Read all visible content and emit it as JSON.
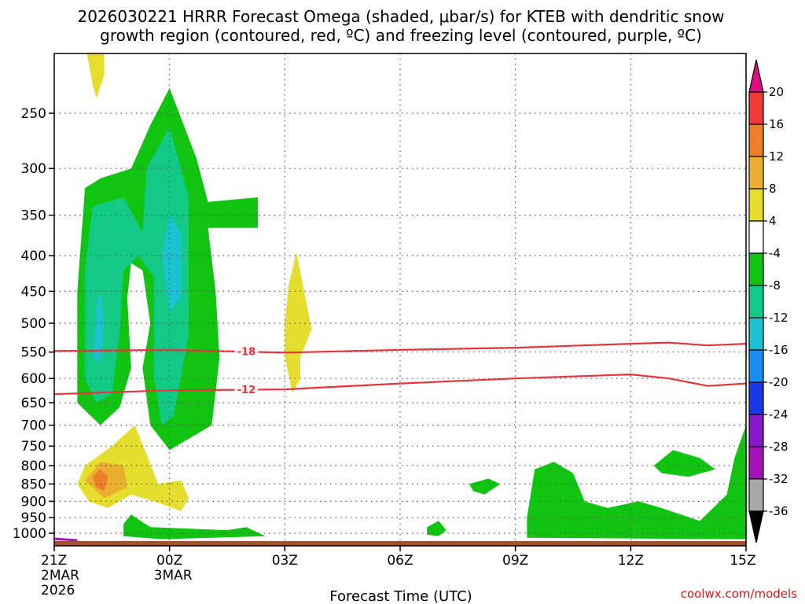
{
  "title_line1": "2026030221 HRRR Forecast Omega (shaded, μbar/s) for KTEB with dendritic snow",
  "title_line2": "growth region (contoured, red, ºC) and freezing level (contoured, purple, ºC)",
  "credit": "coolwx.com/models",
  "chart_data": {
    "type": "contour",
    "title": "2026030221 HRRR Forecast Omega (shaded, μbar/s) for KTEB with dendritic snow growth region (contoured, red, ºC) and freezing level (contoured, purple, ºC)",
    "xlabel": "Forecast Time (UTC)",
    "ylabel": "",
    "xlim": [
      0,
      18
    ],
    "ylim": [
      1050,
      200
    ],
    "y_scale": "log-pressure",
    "grid": true,
    "x_ticks": [
      {
        "hour": 0,
        "label": "21Z",
        "date": "2MAR",
        "year": "2026"
      },
      {
        "hour": 3,
        "label": "00Z",
        "date": "3MAR",
        "year": ""
      },
      {
        "hour": 6,
        "label": "03Z",
        "date": "",
        "year": ""
      },
      {
        "hour": 9,
        "label": "06Z",
        "date": "",
        "year": ""
      },
      {
        "hour": 12,
        "label": "09Z",
        "date": "",
        "year": ""
      },
      {
        "hour": 15,
        "label": "12Z",
        "date": "",
        "year": ""
      },
      {
        "hour": 18,
        "label": "15Z",
        "date": "",
        "year": ""
      }
    ],
    "y_ticks": [
      250,
      300,
      350,
      400,
      450,
      500,
      550,
      600,
      650,
      700,
      750,
      800,
      850,
      900,
      950,
      1000
    ],
    "colorbar": {
      "labels": [
        "20",
        "16",
        "12",
        "8",
        "4",
        "-4",
        "-8",
        "-12",
        "-16",
        "-20",
        "-24",
        "-28",
        "-32",
        "-36"
      ],
      "colors": [
        "#dd0f80",
        "#f03a3a",
        "#ee7e26",
        "#ecae30",
        "#e5de2e",
        "#ffffff",
        "#11c411",
        "#12ca86",
        "#1cc2d2",
        "#1890f2",
        "#1838e6",
        "#8818cc",
        "#a312ba",
        "#a8a8a8",
        "#000000"
      ]
    },
    "contours": [
      {
        "label": "-18",
        "color": "#e8343c",
        "points": [
          [
            0,
            548
          ],
          [
            3,
            546
          ],
          [
            6,
            551
          ],
          [
            9,
            546
          ],
          [
            12,
            542
          ],
          [
            15,
            535
          ],
          [
            16,
            533
          ],
          [
            17,
            538
          ],
          [
            18,
            535
          ]
        ]
      },
      {
        "label": "-12",
        "color": "#e8343c",
        "points": [
          [
            0,
            632
          ],
          [
            3,
            624
          ],
          [
            6,
            622
          ],
          [
            9,
            610
          ],
          [
            12,
            600
          ],
          [
            15,
            592
          ],
          [
            16,
            600
          ],
          [
            17,
            615
          ],
          [
            18,
            610
          ]
        ]
      }
    ],
    "freezing_level": {
      "color": "#a312ba",
      "points": [
        [
          0,
          1040
        ],
        [
          0.6,
          1045
        ]
      ]
    },
    "omega_regions": [
      {
        "value": 6,
        "points": [
          [
            0.8,
            200
          ],
          [
            1.3,
            200
          ],
          [
            1.3,
            220
          ],
          [
            1.1,
            238
          ],
          [
            1.0,
            228
          ],
          [
            0.9,
            212
          ]
        ]
      },
      {
        "value": -6,
        "points": [
          [
            0.6,
            650
          ],
          [
            0.6,
            450
          ],
          [
            0.8,
            320
          ],
          [
            1.2,
            310
          ],
          [
            2.0,
            300
          ],
          [
            2.5,
            260
          ],
          [
            3.0,
            230
          ],
          [
            3.7,
            290
          ],
          [
            4.0,
            335
          ],
          [
            5.3,
            330
          ],
          [
            5.3,
            365
          ],
          [
            4.0,
            365
          ],
          [
            4.2,
            450
          ],
          [
            4.3,
            560
          ],
          [
            4.1,
            700
          ],
          [
            3.0,
            760
          ],
          [
            2.5,
            700
          ],
          [
            2.3,
            580
          ],
          [
            2.5,
            500
          ],
          [
            2.3,
            420
          ],
          [
            2.0,
            410
          ],
          [
            1.9,
            460
          ],
          [
            2.0,
            580
          ],
          [
            1.7,
            660
          ],
          [
            1.2,
            700
          ]
        ]
      },
      {
        "value": -10,
        "points": [
          [
            0.8,
            600
          ],
          [
            0.8,
            420
          ],
          [
            1.0,
            340
          ],
          [
            1.8,
            330
          ],
          [
            2.3,
            370
          ],
          [
            2.4,
            300
          ],
          [
            3.0,
            262
          ],
          [
            3.5,
            330
          ],
          [
            3.5,
            520
          ],
          [
            3.1,
            680
          ],
          [
            2.8,
            700
          ],
          [
            2.6,
            600
          ],
          [
            2.6,
            430
          ],
          [
            2.2,
            400
          ],
          [
            1.8,
            420
          ],
          [
            1.7,
            520
          ],
          [
            1.5,
            630
          ],
          [
            1.1,
            650
          ]
        ]
      },
      {
        "value": -14,
        "points": [
          [
            1.0,
            560
          ],
          [
            1.1,
            470
          ],
          [
            1.2,
            450
          ],
          [
            1.3,
            500
          ],
          [
            1.2,
            570
          ]
        ]
      },
      {
        "value": -14,
        "points": [
          [
            2.8,
            400
          ],
          [
            3.0,
            350
          ],
          [
            3.3,
            370
          ],
          [
            3.3,
            460
          ],
          [
            3.0,
            480
          ]
        ]
      },
      {
        "value": 6,
        "points": [
          [
            0.6,
            850
          ],
          [
            0.8,
            800
          ],
          [
            1.5,
            750
          ],
          [
            2.1,
            700
          ],
          [
            2.4,
            770
          ],
          [
            2.7,
            850
          ],
          [
            3.3,
            840
          ],
          [
            3.5,
            890
          ],
          [
            3.3,
            930
          ],
          [
            2.6,
            900
          ],
          [
            2.0,
            880
          ],
          [
            1.4,
            920
          ],
          [
            0.9,
            900
          ]
        ]
      },
      {
        "value": 10,
        "points": [
          [
            0.8,
            840
          ],
          [
            1.2,
            790
          ],
          [
            1.8,
            800
          ],
          [
            1.9,
            860
          ],
          [
            1.3,
            890
          ]
        ]
      },
      {
        "value": 14,
        "points": [
          [
            1.0,
            830
          ],
          [
            1.2,
            810
          ],
          [
            1.4,
            830
          ],
          [
            1.3,
            870
          ],
          [
            1.1,
            860
          ]
        ]
      },
      {
        "value": 6,
        "points": [
          [
            6.0,
            500
          ],
          [
            6.1,
            440
          ],
          [
            6.3,
            395
          ],
          [
            6.5,
            450
          ],
          [
            6.7,
            510
          ],
          [
            6.4,
            560
          ],
          [
            6.4,
            600
          ],
          [
            6.2,
            630
          ],
          [
            6.0,
            560
          ]
        ]
      },
      {
        "value": -6,
        "points": [
          [
            1.8,
            970
          ],
          [
            2.0,
            940
          ],
          [
            2.5,
            980
          ],
          [
            4.5,
            990
          ],
          [
            5.0,
            980
          ],
          [
            5.5,
            1010
          ],
          [
            2.8,
            1020
          ],
          [
            1.8,
            1010
          ]
        ]
      },
      {
        "value": -6,
        "points": [
          [
            9.7,
            980
          ],
          [
            10.0,
            960
          ],
          [
            10.2,
            990
          ],
          [
            10.0,
            1010
          ],
          [
            9.7,
            1005
          ]
        ]
      },
      {
        "value": -6,
        "points": [
          [
            10.8,
            850
          ],
          [
            11.3,
            835
          ],
          [
            11.6,
            850
          ],
          [
            11.2,
            880
          ],
          [
            10.9,
            870
          ]
        ]
      },
      {
        "value": -6,
        "points": [
          [
            12.3,
            950
          ],
          [
            12.5,
            810
          ],
          [
            13.0,
            790
          ],
          [
            13.5,
            820
          ],
          [
            13.8,
            900
          ],
          [
            14.4,
            920
          ],
          [
            15.2,
            900
          ],
          [
            15.8,
            920
          ],
          [
            16.8,
            960
          ],
          [
            17.5,
            880
          ],
          [
            17.7,
            780
          ],
          [
            18.0,
            700
          ],
          [
            18.0,
            1020
          ],
          [
            12.3,
            1015
          ]
        ]
      },
      {
        "value": -6,
        "points": [
          [
            15.6,
            800
          ],
          [
            16.1,
            760
          ],
          [
            16.8,
            780
          ],
          [
            17.2,
            810
          ],
          [
            16.5,
            830
          ],
          [
            15.8,
            820
          ]
        ]
      }
    ]
  }
}
